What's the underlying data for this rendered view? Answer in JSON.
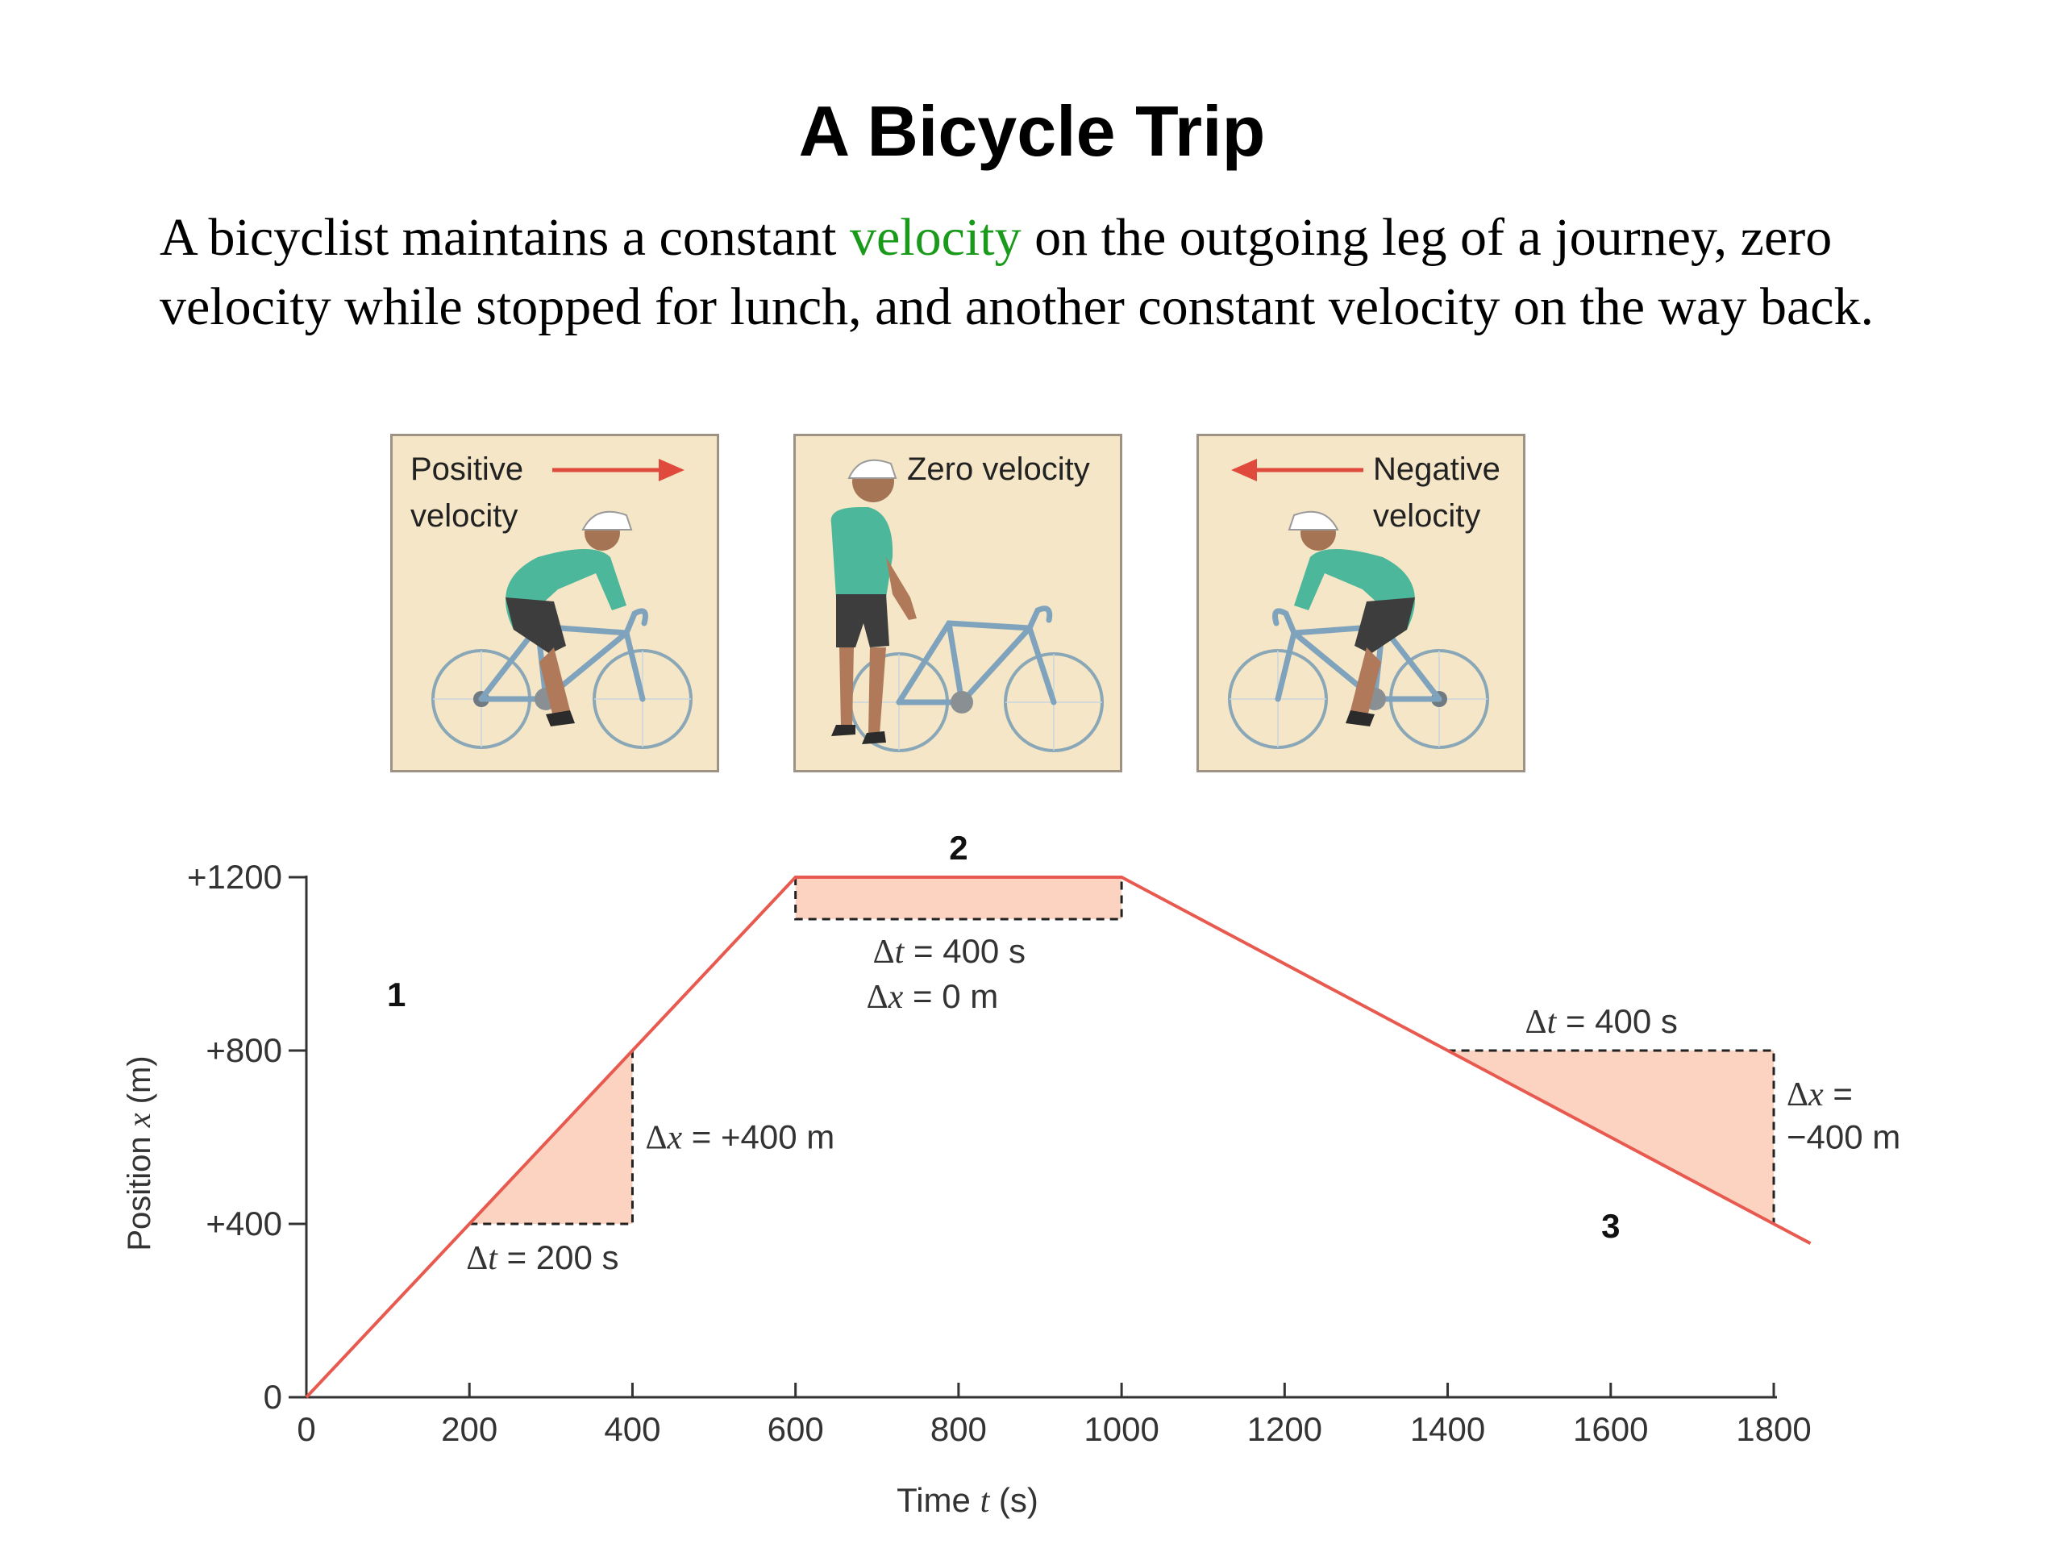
{
  "title": "A Bicycle Trip",
  "intro": {
    "before": "A bicyclist maintains a constant ",
    "highlight": "velocity",
    "after": " on the outgoing leg of a journey, zero velocity while stopped for lunch, and another constant velocity on the way back.",
    "highlight_color": "#1a9a1a"
  },
  "panels": [
    {
      "line1": "Positive",
      "line2": "velocity",
      "arrow": "right-arrow-icon"
    },
    {
      "line1": "Zero velocity",
      "line2": ""
    },
    {
      "line1": "Negative",
      "line2": "velocity",
      "arrow": "left-arrow-icon"
    }
  ],
  "colors": {
    "line": "#e85a4f",
    "fill": "#fbd3c0",
    "panel_bg": "#f4e6c6",
    "arrow": "#e04a3c"
  },
  "chart_data": {
    "type": "line",
    "x": [
      0,
      600,
      1000,
      1800
    ],
    "y": [
      0,
      1200,
      1200,
      400
    ],
    "xlabel_pre": "Time ",
    "xlabel_var": "t",
    "xlabel_post": " (s)",
    "ylabel_pre": "Position ",
    "ylabel_var": "x",
    "ylabel_post": " (m)",
    "xlim": [
      0,
      1800
    ],
    "ylim": [
      0,
      1200
    ],
    "xticks": [
      0,
      200,
      400,
      600,
      800,
      1000,
      1200,
      1400,
      1600,
      1800
    ],
    "xtick_labels": [
      "0",
      "200",
      "400",
      "600",
      "800",
      "1000",
      "1200",
      "1400",
      "1600",
      "1800"
    ],
    "yticks": [
      0,
      400,
      800,
      1200
    ],
    "ytick_labels": [
      "0",
      "+400",
      "+800",
      "+1200"
    ],
    "grid": false,
    "segment_labels": [
      "1",
      "2",
      "3"
    ],
    "annotations": [
      {
        "id": "seg1",
        "t0": 200,
        "t1": 400,
        "x0": 400,
        "x1": 800,
        "dt": "Δt = 200 s",
        "dx": "Δx = +400 m"
      },
      {
        "id": "seg2",
        "t0": 600,
        "t1": 1000,
        "x0": 1200,
        "x1": 1200,
        "dt": "Δt = 400 s",
        "dx": "Δx = 0 m"
      },
      {
        "id": "seg3",
        "t0": 1400,
        "t1": 1800,
        "x0": 800,
        "x1": 400,
        "dt": "Δt = 400 s",
        "dx_line1": "Δx =",
        "dx_line2": "−400 m"
      }
    ]
  }
}
